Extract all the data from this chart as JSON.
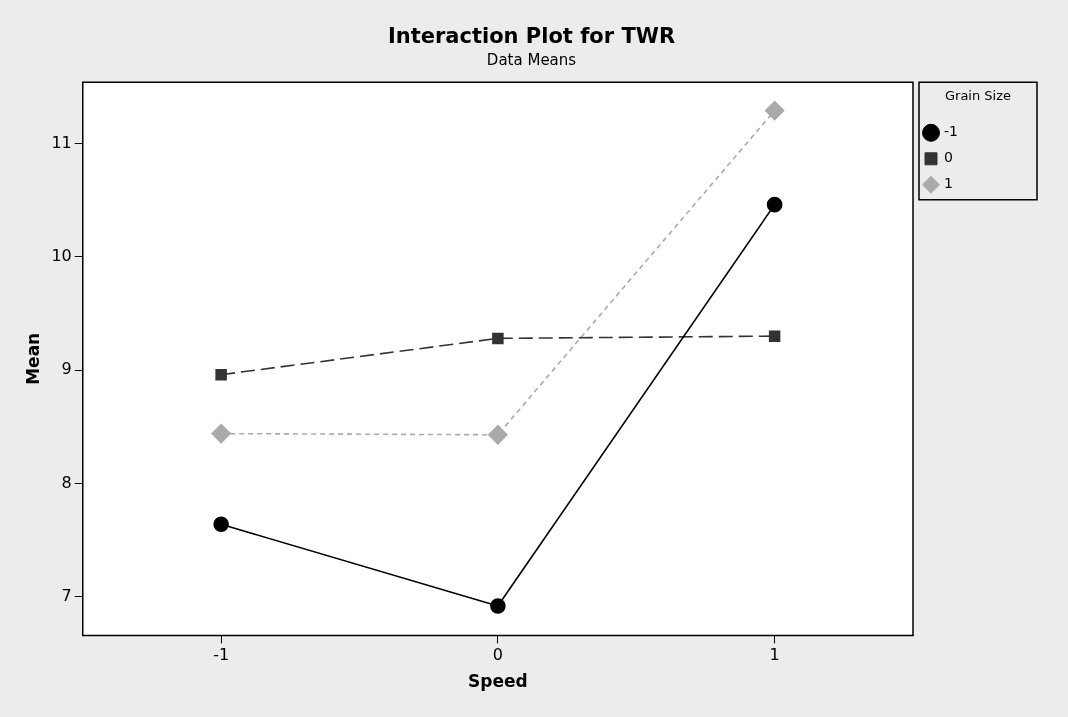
{
  "chart_data": {
    "type": "line",
    "title": "Interaction Plot for TWR",
    "subtitle": "Data Means",
    "xlabel": "Speed",
    "ylabel": "Mean",
    "legend_title": "Grain Size",
    "x": [
      -1,
      0,
      1
    ],
    "xlim": [
      -1.5,
      1.5
    ],
    "xticks": [
      -1,
      0,
      1
    ],
    "ylim": [
      6.66,
      11.54
    ],
    "yticks": [
      7,
      8,
      9,
      10,
      11
    ],
    "grid": false,
    "legend": "top right",
    "series": [
      {
        "name": "-1",
        "color": "#000000",
        "marker": "circle",
        "line_style": "solid",
        "values": [
          7.64,
          6.92,
          10.46
        ]
      },
      {
        "name": "0",
        "color": "#333333",
        "marker": "square",
        "line_style": "dashed",
        "values": [
          8.96,
          9.28,
          9.3
        ]
      },
      {
        "name": "1",
        "color": "#aaaaaa",
        "marker": "diamond",
        "line_style": "dotted",
        "values": [
          8.44,
          8.43,
          11.29
        ]
      }
    ]
  }
}
